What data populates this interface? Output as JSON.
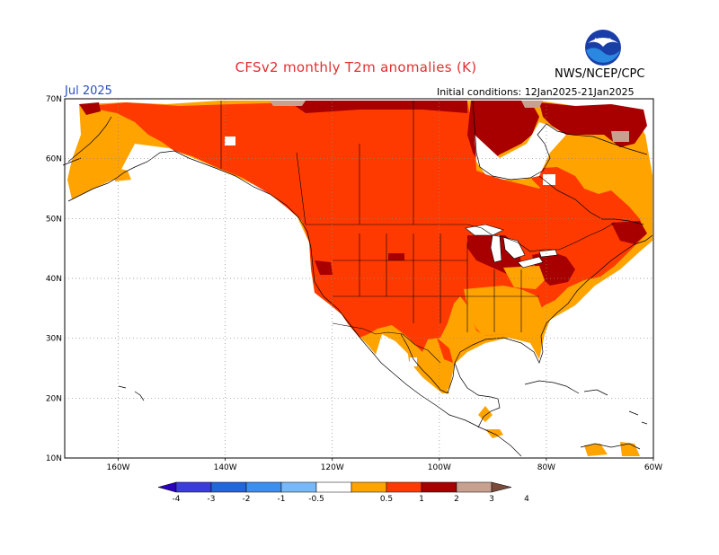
{
  "title": "CFSv2 monthly T2m anomalies (K)",
  "valid_month": "Jul 2025",
  "initial_conditions": "Initial conditions: 12Jan2025-21Jan2025",
  "agency": "NWS/NCEP/CPC",
  "logo_text": "NOAA",
  "map": {
    "lon_range": [
      -170,
      -60
    ],
    "lat_range": [
      10,
      70
    ],
    "lon_ticks": [
      "160W",
      "140W",
      "120W",
      "100W",
      "80W",
      "60W"
    ],
    "lat_ticks": [
      "70N",
      "60N",
      "50N",
      "40N",
      "30N",
      "20N",
      "10N"
    ],
    "gridlines": "dotted"
  },
  "legend": {
    "labels": [
      "-4",
      "-3",
      "-2",
      "-1",
      "-0.5",
      "0.5",
      "1",
      "2",
      "3",
      "4"
    ],
    "colors": [
      "#2b00c0",
      "#3c3cdc",
      "#2266dd",
      "#3c8ff0",
      "#78b8f8",
      "#ffffff",
      "#ffa300",
      "#ff3a00",
      "#a80000",
      "#c8a090",
      "#7a4a3a"
    ]
  },
  "colors": {
    "c05": "#ffa300",
    "c1": "#ff3a00",
    "c2": "#a80000",
    "c3": "#c8a090",
    "title": "#e03030",
    "month": "#2a4fc0"
  }
}
